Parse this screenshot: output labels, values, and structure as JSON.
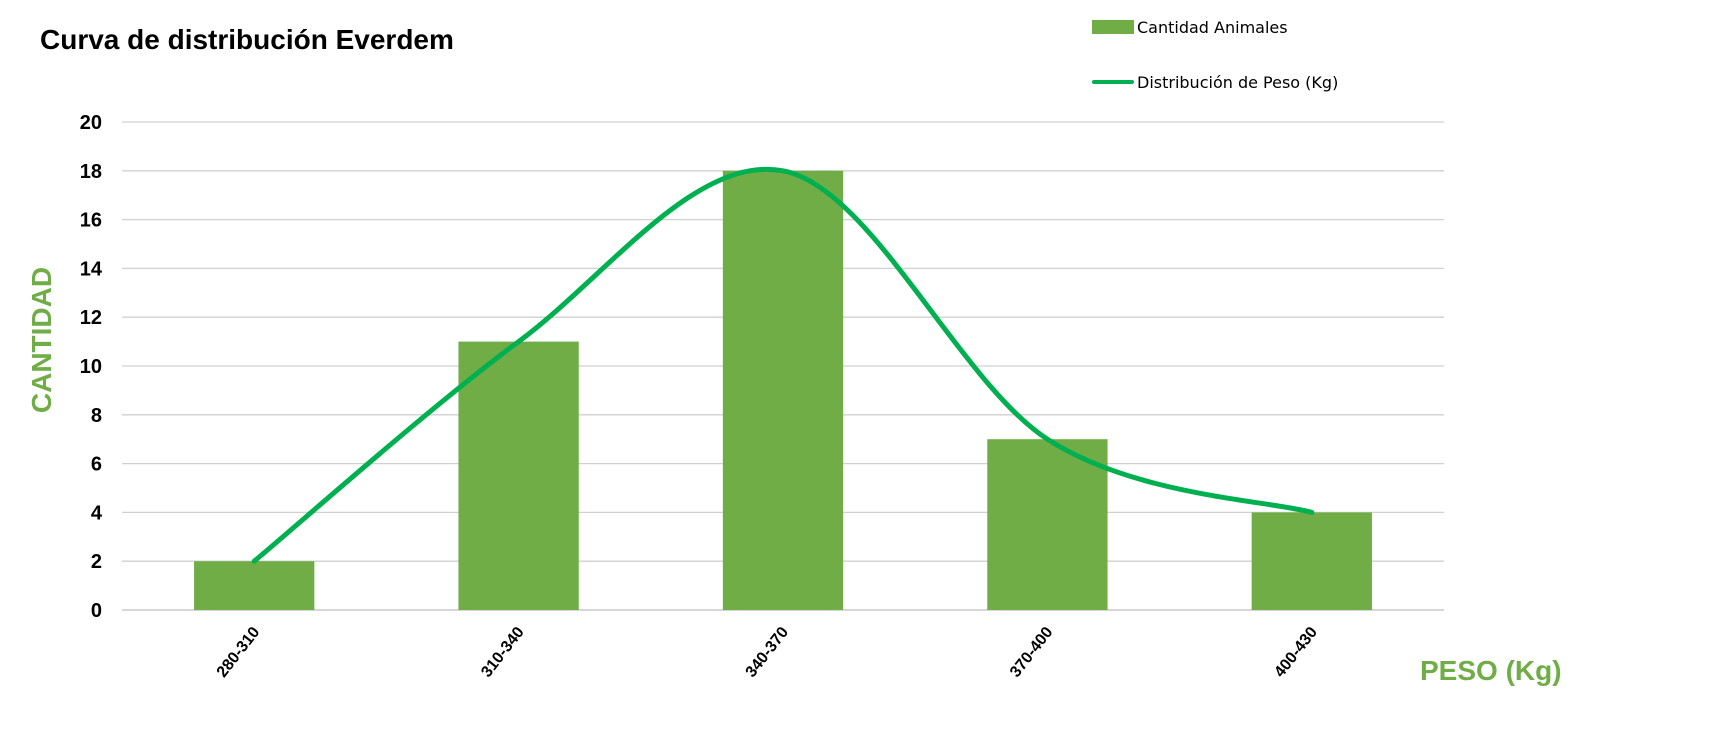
{
  "chart_data": {
    "type": "bar",
    "title": "Curva de distribución Everdem",
    "xlabel": "PESO (Kg)",
    "ylabel": "CANTIDAD",
    "categories": [
      "280-310",
      "310-340",
      "340-370",
      "370-400",
      "400-430"
    ],
    "ylim": [
      0,
      20
    ],
    "yticks": [
      0,
      2,
      4,
      6,
      8,
      10,
      12,
      14,
      16,
      18,
      20
    ],
    "grid": true,
    "legend_position": "top-right",
    "series": [
      {
        "name": "Cantidad Animales",
        "type": "bar",
        "values": [
          2,
          11,
          18,
          7,
          4
        ],
        "color": "#70AD47"
      },
      {
        "name": "Distribución de Peso (Kg)",
        "type": "line",
        "smooth": true,
        "values": [
          2,
          11,
          18,
          7,
          4
        ],
        "color": "#00B050"
      }
    ]
  }
}
